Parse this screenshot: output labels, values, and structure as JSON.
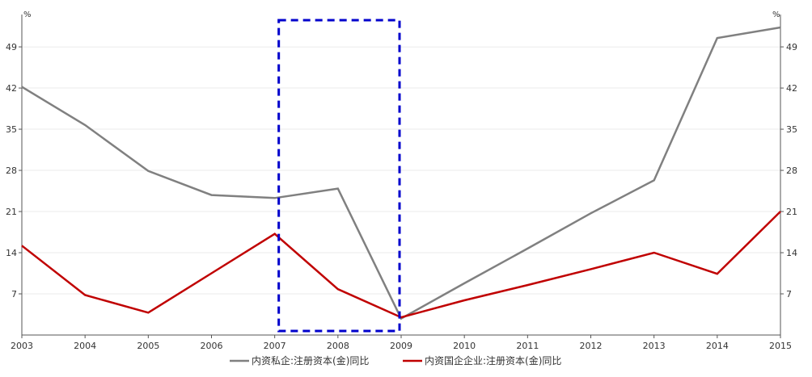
{
  "chart_data": {
    "type": "line",
    "x": [
      "2003",
      "2004",
      "2005",
      "2006",
      "2007",
      "2008",
      "2009",
      "2010",
      "2011",
      "2012",
      "2013",
      "2014",
      "2015"
    ],
    "series": [
      {
        "name": "内资私企:注册资本(金)同比",
        "color": "#808080",
        "values": [
          42.2,
          35.7,
          27.9,
          23.8,
          23.3,
          24.9,
          2.8,
          8.8,
          14.7,
          20.7,
          26.3,
          50.5,
          52.3
        ]
      },
      {
        "name": "内资国企企业:注册资本(金)同比",
        "color": "#c00000",
        "values": [
          15.2,
          6.8,
          3.8,
          10.5,
          17.2,
          7.8,
          3.0,
          5.9,
          8.5,
          11.2,
          14.0,
          10.4,
          21.0
        ]
      }
    ],
    "y_left": {
      "unit": "%",
      "ticks": [
        7,
        14,
        21,
        28,
        35,
        42,
        49
      ],
      "min": 0,
      "max": 54.5
    },
    "y_right": {
      "unit": "%",
      "ticks": [
        7,
        14,
        21,
        28,
        35,
        42,
        49
      ],
      "min": 0,
      "max": 54.5
    },
    "grid": true,
    "legend": "bottom-center",
    "highlight_box": {
      "x_start": "2007",
      "x_end": "2009",
      "color": "#0000cc",
      "style": "dashed"
    }
  }
}
